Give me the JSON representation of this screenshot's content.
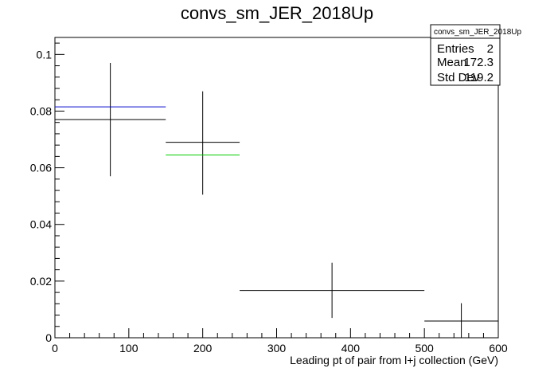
{
  "chart_data": {
    "type": "histogram",
    "title": "convs_sm_JER_2018Up",
    "xlabel": "Leading pt of pair from l+j collection (GeV)",
    "ylabel": "",
    "xlim": [
      0,
      600
    ],
    "ylim": [
      0,
      0.106
    ],
    "x_ticks": [
      "0",
      "100",
      "200",
      "300",
      "400",
      "500",
      "600"
    ],
    "y_ticks": [
      "0",
      "0.02",
      "0.04",
      "0.06",
      "0.08",
      "0.1"
    ],
    "grid": false,
    "series": [
      {
        "color": "#000000",
        "bins": [
          {
            "xlow": 0,
            "xhigh": 150,
            "value": 0.077,
            "err_low": 0.057,
            "err_high": 0.097
          },
          {
            "xlow": 150,
            "xhigh": 250,
            "value": 0.069,
            "err_low": 0.0505,
            "err_high": 0.087
          },
          {
            "xlow": 250,
            "xhigh": 500,
            "value": 0.0167,
            "err_low": 0.007,
            "err_high": 0.0265
          },
          {
            "xlow": 500,
            "xhigh": 600,
            "value": 0.0059,
            "err_low": 0.0,
            "err_high": 0.0122
          }
        ]
      },
      {
        "color": "#0000cc",
        "bins": [
          {
            "xlow": 0,
            "xhigh": 150,
            "value": 0.0815
          }
        ]
      },
      {
        "color": "#00cc00",
        "bins": [
          {
            "xlow": 150,
            "xhigh": 250,
            "value": 0.0645
          }
        ]
      }
    ],
    "stats_box": {
      "name": "convs_sm_JER_2018Up",
      "rows": [
        {
          "label": "Entries",
          "value": "2"
        },
        {
          "label": "Mean",
          "value": "172.3"
        },
        {
          "label": "Std Dev",
          "value": "119.2"
        }
      ]
    }
  }
}
